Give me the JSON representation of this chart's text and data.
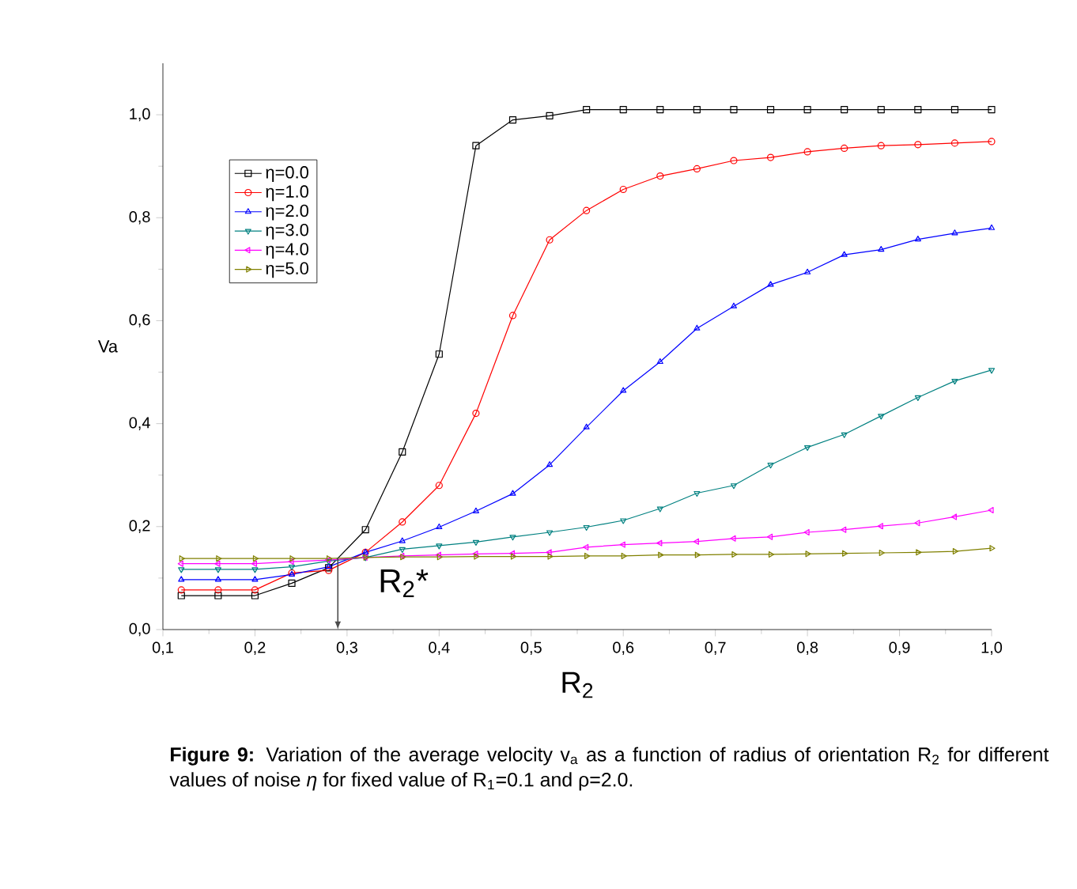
{
  "chart_data": {
    "type": "line",
    "xlabel": "R$_{2}$",
    "ylabel": "Va",
    "x": [
      0.12,
      0.16,
      0.2,
      0.24,
      0.28,
      0.32,
      0.36,
      0.4,
      0.44,
      0.48,
      0.52,
      0.56,
      0.6,
      0.64,
      0.68,
      0.72,
      0.76,
      0.8,
      0.84,
      0.88,
      0.92,
      0.96,
      1.0
    ],
    "series": [
      {
        "name": "η=0.0",
        "color": "#000000",
        "marker": "square",
        "values": [
          0.066,
          0.066,
          0.066,
          0.09,
          0.12,
          0.194,
          0.345,
          0.535,
          0.94,
          0.99,
          0.998,
          1.01,
          1.01,
          1.01,
          1.01,
          1.01,
          1.01,
          1.01,
          1.01,
          1.01,
          1.01,
          1.01,
          1.01
        ]
      },
      {
        "name": "η=1.0",
        "color": "#ff0000",
        "marker": "circle",
        "values": [
          0.077,
          0.077,
          0.077,
          0.11,
          0.115,
          0.15,
          0.209,
          0.28,
          0.42,
          0.61,
          0.757,
          0.814,
          0.855,
          0.881,
          0.895,
          0.911,
          0.917,
          0.928,
          0.935,
          0.94,
          0.942,
          0.945,
          0.948
        ]
      },
      {
        "name": "η=2.0",
        "color": "#0000ff",
        "marker": "triangle",
        "values": [
          0.097,
          0.097,
          0.097,
          0.107,
          0.122,
          0.15,
          0.172,
          0.199,
          0.23,
          0.264,
          0.32,
          0.393,
          0.464,
          0.52,
          0.585,
          0.628,
          0.67,
          0.694,
          0.728,
          0.738,
          0.758,
          0.77,
          0.78
        ]
      },
      {
        "name": "η=3.0",
        "color": "#008080",
        "marker": "triangle-down",
        "values": [
          0.117,
          0.117,
          0.117,
          0.122,
          0.133,
          0.14,
          0.156,
          0.163,
          0.17,
          0.18,
          0.189,
          0.199,
          0.212,
          0.235,
          0.265,
          0.28,
          0.32,
          0.354,
          0.379,
          0.415,
          0.451,
          0.483,
          0.504
        ]
      },
      {
        "name": "η=4.0",
        "color": "#ff00ff",
        "marker": "triangle-left",
        "values": [
          0.128,
          0.128,
          0.128,
          0.132,
          0.135,
          0.14,
          0.143,
          0.145,
          0.147,
          0.148,
          0.15,
          0.16,
          0.165,
          0.168,
          0.171,
          0.177,
          0.18,
          0.189,
          0.194,
          0.201,
          0.207,
          0.219,
          0.232
        ]
      },
      {
        "name": "η=5.0",
        "color": "#808000",
        "marker": "triangle-right",
        "values": [
          0.138,
          0.138,
          0.138,
          0.138,
          0.138,
          0.14,
          0.141,
          0.141,
          0.142,
          0.142,
          0.142,
          0.143,
          0.143,
          0.145,
          0.145,
          0.146,
          0.146,
          0.147,
          0.148,
          0.149,
          0.15,
          0.152,
          0.158
        ]
      }
    ],
    "xlim": [
      0.1,
      1.0
    ],
    "ylim": [
      0.0,
      1.1
    ],
    "xticks": [
      {
        "value": 0.1,
        "label": "0,1"
      },
      {
        "value": 0.2,
        "label": "0,2"
      },
      {
        "value": 0.3,
        "label": "0,3"
      },
      {
        "value": 0.4,
        "label": "0,4"
      },
      {
        "value": 0.5,
        "label": "0,5"
      },
      {
        "value": 0.6,
        "label": "0,6"
      },
      {
        "value": 0.7,
        "label": "0,7"
      },
      {
        "value": 0.8,
        "label": "0,8"
      },
      {
        "value": 0.9,
        "label": "0,9"
      },
      {
        "value": 1.0,
        "label": "1,0"
      }
    ],
    "yticks": [
      {
        "value": 0.0,
        "label": "0,0"
      },
      {
        "value": 0.2,
        "label": "0,2"
      },
      {
        "value": 0.4,
        "label": "0,4"
      },
      {
        "value": 0.6,
        "label": "0,6"
      },
      {
        "value": 0.8,
        "label": "0,8"
      },
      {
        "value": 1.0,
        "label": "1,0"
      }
    ],
    "legend": "top left",
    "grid": false,
    "line_style": "solid",
    "annotations": [
      {
        "text": "R$_{2}$*",
        "x": 0.29,
        "y": 0.14
      },
      "**Figure 9:** Variation of the average velocity v$_{a}$ as a function of radius of orientation R$_{2}$ for different values of noise *η* for fixed value of R$_{1}$=0.1 and ρ=2.0."
    ]
  }
}
